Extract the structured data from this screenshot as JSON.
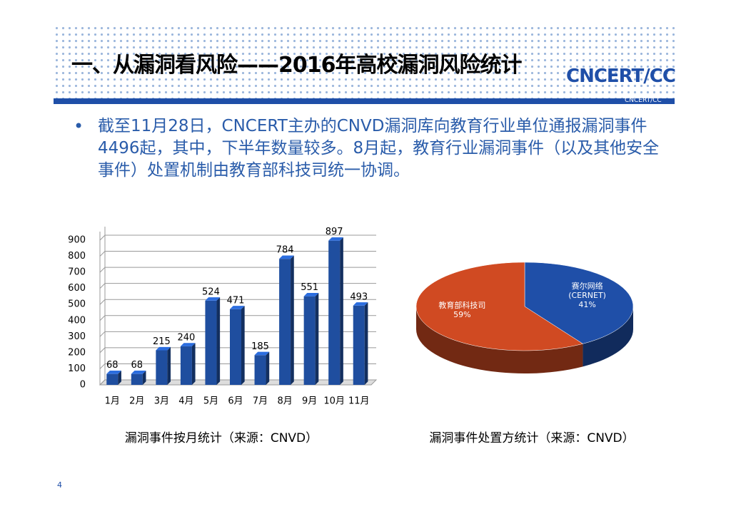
{
  "header": {
    "title": "一、从漏洞看风险——2016年高校漏洞风险统计",
    "logo": "CNCERT/CC",
    "logo_sub": "CNCERT/CC"
  },
  "bullet": "截至11月28日，CNCERT主办的CNVD漏洞库向教育行业单位通报漏洞事件4496起，其中，下半年数量较多。8月起，教育行业漏洞事件（以及其他安全事件）处置机制由教育部科技司统一协调。",
  "page_number": 4,
  "chart_data": [
    {
      "type": "bar",
      "caption": "漏洞事件按月统计（来源：CNVD）",
      "categories": [
        "1月",
        "2月",
        "3月",
        "4月",
        "5月",
        "6月",
        "7月",
        "8月",
        "9月",
        "10月",
        "11月"
      ],
      "values": [
        68,
        68,
        215,
        240,
        524,
        471,
        185,
        784,
        551,
        897,
        493
      ],
      "color": "#1f4e9f",
      "ylim": [
        0,
        900
      ],
      "yticks": [
        0,
        100,
        200,
        300,
        400,
        500,
        600,
        700,
        800,
        900
      ],
      "grid": true
    },
    {
      "type": "pie",
      "caption": "漏洞事件处置方统计（来源：CNVD）",
      "categories": [
        "赛尔网络\n(CERNET)",
        "教育部科技司"
      ],
      "values": [
        41,
        59
      ],
      "value_labels": [
        "41%",
        "59%"
      ],
      "colors": [
        "#1f4fa8",
        "#d04a22"
      ]
    }
  ]
}
